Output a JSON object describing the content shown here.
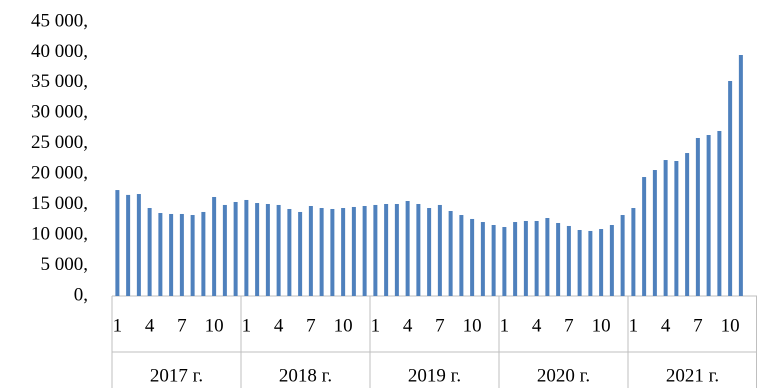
{
  "chart_data": {
    "type": "bar",
    "categories": [
      "1",
      null,
      null,
      "4",
      null,
      null,
      "7",
      null,
      null,
      "10",
      null,
      null,
      "1",
      null,
      null,
      "4",
      null,
      null,
      "7",
      null,
      null,
      "10",
      null,
      null,
      "1",
      null,
      null,
      "4",
      null,
      null,
      "7",
      null,
      null,
      "10",
      null,
      null,
      "1",
      null,
      null,
      "4",
      null,
      null,
      "7",
      null,
      null,
      "10",
      null,
      null,
      "1",
      null,
      null,
      "4",
      null,
      null,
      "7",
      null,
      null,
      "10",
      null,
      null
    ],
    "groups": [
      "2017 г.",
      "2018 г.",
      "2019 г.",
      "2020 г.",
      "2021 г."
    ],
    "values": [
      17400,
      16600,
      16750,
      14450,
      13630,
      13470,
      13470,
      13300,
      13800,
      16260,
      14950,
      15440,
      15770,
      15270,
      15110,
      14950,
      14290,
      13800,
      14780,
      14450,
      14290,
      14450,
      14620,
      14780,
      14950,
      15110,
      15110,
      15600,
      15110,
      14450,
      14950,
      13960,
      13300,
      12650,
      12150,
      11660,
      11330,
      12150,
      12320,
      12320,
      12810,
      11990,
      11500,
      10840,
      10680,
      11000,
      11660,
      13300,
      14450,
      19540,
      20690,
      22330,
      22170,
      23480,
      25950,
      26440,
      27100,
      35310,
      39580,
      null
    ],
    "color": "#4f81bd",
    "ylim": [
      0,
      45000
    ],
    "yticks": [
      {
        "value": 0,
        "label": "0,"
      },
      {
        "value": 5000,
        "label": "5 000,"
      },
      {
        "value": 10000,
        "label": "10 000,"
      },
      {
        "value": 15000,
        "label": "15 000,"
      },
      {
        "value": 20000,
        "label": "20 000,"
      },
      {
        "value": 25000,
        "label": "25 000,"
      },
      {
        "value": 30000,
        "label": "30 000,"
      },
      {
        "value": 35000,
        "label": "35 000,"
      },
      {
        "value": 40000,
        "label": "40 000,"
      },
      {
        "value": 45000,
        "label": "45 000,"
      }
    ],
    "grid": false
  }
}
